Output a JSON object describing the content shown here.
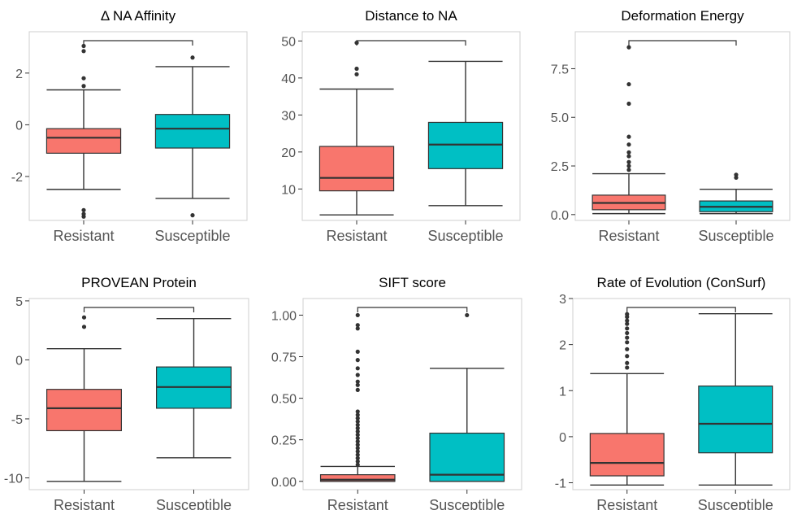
{
  "colors": {
    "resistant": "#F8766D",
    "susceptible": "#00BFC4",
    "panel_border": "#cfcfcf",
    "ink": "#333333",
    "tick_text": "#555555"
  },
  "chart_data": [
    {
      "type": "box",
      "title": "Δ NA Affinity",
      "categories": [
        "Resistant",
        "Susceptible"
      ],
      "ylim": [
        -3.7,
        3.6
      ],
      "yticks": [
        -2,
        0,
        2
      ],
      "ytick_labels": [
        "-2",
        "0",
        "2"
      ],
      "boxes": [
        {
          "group": "Resistant",
          "whisker_low": -2.5,
          "q1": -1.1,
          "median": -0.5,
          "q3": -0.15,
          "whisker_high": 1.35,
          "outliers": [
            -3.3,
            -3.45,
            -3.55,
            1.5,
            1.8,
            2.85,
            3.05
          ]
        },
        {
          "group": "Susceptible",
          "whisker_low": -2.85,
          "q1": -0.9,
          "median": -0.15,
          "q3": 0.4,
          "whisker_high": 2.25,
          "outliers": [
            -3.5,
            2.6
          ]
        }
      ]
    },
    {
      "type": "box",
      "title": "Distance to NA",
      "categories": [
        "Resistant",
        "Susceptible"
      ],
      "ylim": [
        1.5,
        52.5
      ],
      "yticks": [
        10,
        20,
        30,
        40,
        50
      ],
      "ytick_labels": [
        "10",
        "20",
        "30",
        "40",
        "50"
      ],
      "boxes": [
        {
          "group": "Resistant",
          "whisker_low": 3,
          "q1": 9.5,
          "median": 13,
          "q3": 21.5,
          "whisker_high": 37,
          "outliers": [
            41,
            42.5,
            49.5
          ]
        },
        {
          "group": "Susceptible",
          "whisker_low": 5.5,
          "q1": 15.5,
          "median": 22,
          "q3": 28,
          "whisker_high": 44.5,
          "outliers": []
        }
      ]
    },
    {
      "type": "box",
      "title": "Deformation Energy",
      "categories": [
        "Resistant",
        "Susceptible"
      ],
      "ylim": [
        -0.3,
        9.4
      ],
      "yticks": [
        0,
        2.5,
        5,
        7.5
      ],
      "ytick_labels": [
        "0.0",
        "2.5",
        "5.0",
        "7.5"
      ],
      "boxes": [
        {
          "group": "Resistant",
          "whisker_low": 0.05,
          "q1": 0.25,
          "median": 0.6,
          "q3": 1.0,
          "whisker_high": 2.1,
          "outliers": [
            2.3,
            2.5,
            2.7,
            3.0,
            3.2,
            3.6,
            4.0,
            5.7,
            6.7,
            8.6
          ]
        },
        {
          "group": "Susceptible",
          "whisker_low": 0.05,
          "q1": 0.15,
          "median": 0.4,
          "q3": 0.7,
          "whisker_high": 1.3,
          "outliers": [
            1.9,
            2.05
          ]
        }
      ]
    },
    {
      "type": "box",
      "title": "PROVEAN Protein",
      "categories": [
        "Resistant",
        "Susceptible"
      ],
      "ylim": [
        -11,
        5.2
      ],
      "yticks": [
        -10,
        -5,
        0,
        5
      ],
      "ytick_labels": [
        "-10",
        "-5",
        "0",
        "5"
      ],
      "boxes": [
        {
          "group": "Resistant",
          "whisker_low": -10.3,
          "q1": -6.0,
          "median": -4.1,
          "q3": -2.5,
          "whisker_high": 0.95,
          "outliers": [
            2.8,
            3.6
          ]
        },
        {
          "group": "Susceptible",
          "whisker_low": -8.3,
          "q1": -4.1,
          "median": -2.3,
          "q3": -0.6,
          "whisker_high": 3.5,
          "outliers": []
        }
      ]
    },
    {
      "type": "box",
      "title": "SIFT score",
      "categories": [
        "Resistant",
        "Susceptible"
      ],
      "ylim": [
        -0.05,
        1.1
      ],
      "yticks": [
        0,
        0.25,
        0.5,
        0.75,
        1.0
      ],
      "ytick_labels": [
        "0.00",
        "0.25",
        "0.50",
        "0.75",
        "1.00"
      ],
      "boxes": [
        {
          "group": "Resistant",
          "whisker_low": 0.0,
          "q1": 0.0,
          "median": 0.01,
          "q3": 0.04,
          "whisker_high": 0.09,
          "outliers": [
            0.1,
            0.12,
            0.14,
            0.16,
            0.18,
            0.2,
            0.22,
            0.24,
            0.26,
            0.28,
            0.3,
            0.32,
            0.34,
            0.36,
            0.38,
            0.4,
            0.42,
            0.55,
            0.58,
            0.6,
            0.64,
            0.68,
            0.73,
            0.78,
            0.92,
            0.94,
            1.0
          ]
        },
        {
          "group": "Susceptible",
          "whisker_low": 0.0,
          "q1": 0.0,
          "median": 0.04,
          "q3": 0.29,
          "whisker_high": 0.68,
          "outliers": [
            1.0
          ]
        }
      ]
    },
    {
      "type": "box",
      "title": "Rate of Evolution (ConSurf)",
      "categories": [
        "Resistant",
        "Susceptible"
      ],
      "ylim": [
        -1.15,
        3.0
      ],
      "yticks": [
        -1,
        0,
        1,
        2,
        3
      ],
      "ytick_labels": [
        "-1",
        "0",
        "1",
        "2",
        "3"
      ],
      "boxes": [
        {
          "group": "Resistant",
          "whisker_low": -1.05,
          "q1": -0.85,
          "median": -0.57,
          "q3": 0.07,
          "whisker_high": 1.37,
          "outliers": [
            1.5,
            1.6,
            1.75,
            1.9,
            2.05,
            2.15,
            2.25,
            2.35,
            2.45,
            2.52,
            2.6,
            2.66
          ]
        },
        {
          "group": "Susceptible",
          "whisker_low": -1.05,
          "q1": -0.35,
          "median": 0.28,
          "q3": 1.1,
          "whisker_high": 2.67,
          "outliers": []
        }
      ]
    }
  ]
}
